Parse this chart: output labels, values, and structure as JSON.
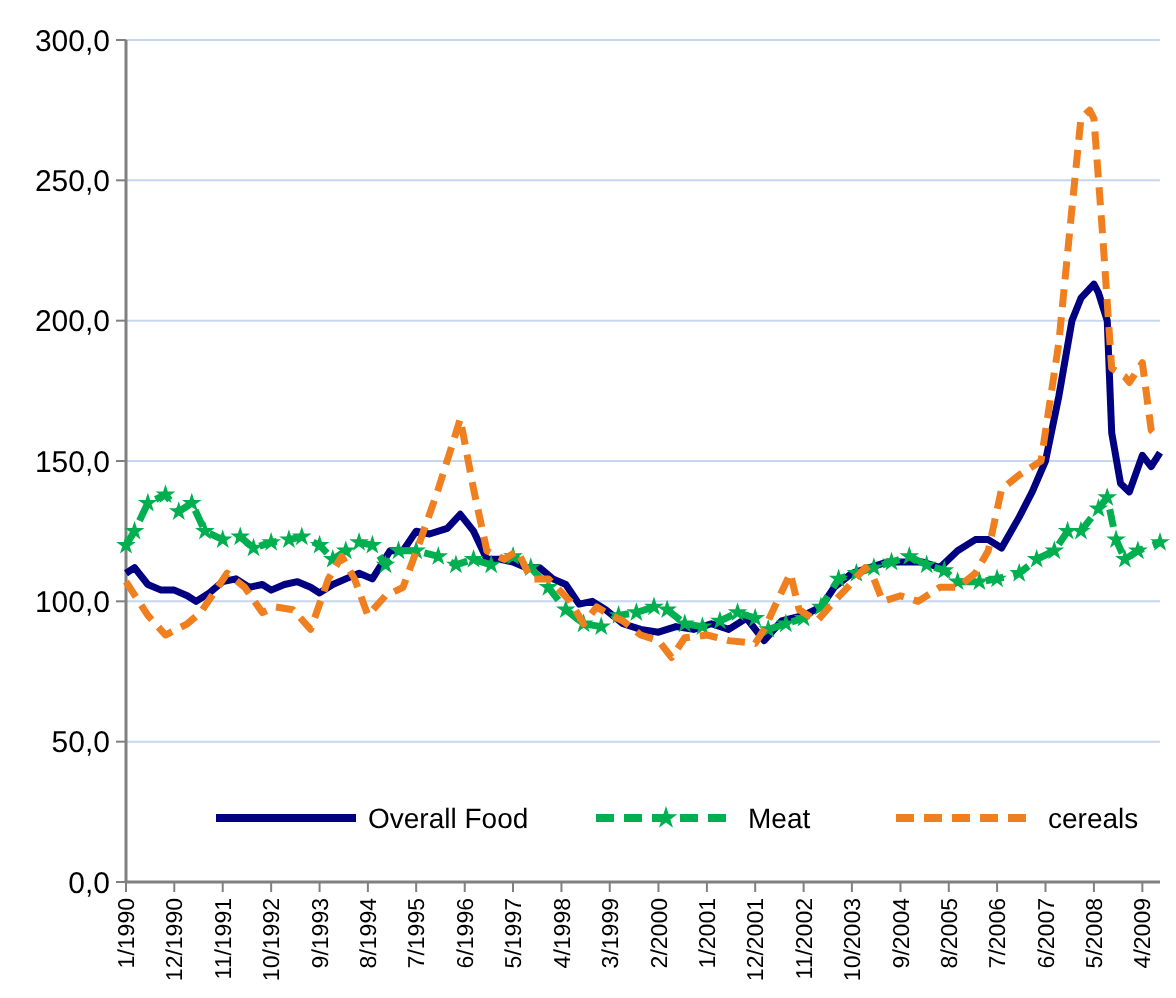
{
  "chart_data": {
    "type": "line",
    "xlim": [
      "1990-01",
      "2009-08"
    ],
    "xticks": [
      {
        "value": "1990-01",
        "label": "1/1990"
      },
      {
        "value": "1990-12",
        "label": "12/1990"
      },
      {
        "value": "1991-11",
        "label": "11/1991"
      },
      {
        "value": "1992-10",
        "label": "10/1992"
      },
      {
        "value": "1993-09",
        "label": "9/1993"
      },
      {
        "value": "1994-08",
        "label": "8/1994"
      },
      {
        "value": "1995-07",
        "label": "7/1995"
      },
      {
        "value": "1996-06",
        "label": "6/1996"
      },
      {
        "value": "1997-05",
        "label": "5/1997"
      },
      {
        "value": "1998-04",
        "label": "4/1998"
      },
      {
        "value": "1999-03",
        "label": "3/1999"
      },
      {
        "value": "2000-02",
        "label": "2/2000"
      },
      {
        "value": "2001-01",
        "label": "1/2001"
      },
      {
        "value": "2001-12",
        "label": "12/2001"
      },
      {
        "value": "2002-11",
        "label": "11/2002"
      },
      {
        "value": "2003-10",
        "label": "10/2003"
      },
      {
        "value": "2004-09",
        "label": "9/2004"
      },
      {
        "value": "2005-08",
        "label": "8/2005"
      },
      {
        "value": "2006-07",
        "label": "7/2006"
      },
      {
        "value": "2007-06",
        "label": "6/2007"
      },
      {
        "value": "2008-05",
        "label": "5/2008"
      },
      {
        "value": "2009-04",
        "label": "4/2009"
      }
    ],
    "ylim": [
      0,
      300
    ],
    "yticks": [
      {
        "value": 0,
        "label": "0,0"
      },
      {
        "value": 50,
        "label": "50,0"
      },
      {
        "value": 100,
        "label": "100,0"
      },
      {
        "value": 150,
        "label": "150,0"
      },
      {
        "value": 200,
        "label": "200,0"
      },
      {
        "value": 250,
        "label": "250,0"
      },
      {
        "value": 300,
        "label": "300,0"
      }
    ],
    "grid": "y",
    "legend": "bottom",
    "series": [
      {
        "name": "Overall Food",
        "color": "#000080",
        "line_style": "solid",
        "marker": "none",
        "x": [
          "1990-01",
          "1990-03",
          "1990-06",
          "1990-09",
          "1990-12",
          "1991-03",
          "1991-05",
          "1991-08",
          "1991-11",
          "1992-02",
          "1992-05",
          "1992-08",
          "1992-10",
          "1993-01",
          "1993-04",
          "1993-07",
          "1993-09",
          "1993-12",
          "1994-03",
          "1994-06",
          "1994-09",
          "1995-01",
          "1995-04",
          "1995-07",
          "1995-10",
          "1996-02",
          "1996-05",
          "1996-08",
          "1996-11",
          "1997-02",
          "1997-05",
          "1997-08",
          "1997-11",
          "1998-02",
          "1998-05",
          "1998-08",
          "1998-11",
          "1999-02",
          "1999-06",
          "1999-10",
          "2000-02",
          "2000-06",
          "2000-10",
          "2001-02",
          "2001-06",
          "2001-10",
          "2002-02",
          "2002-06",
          "2002-11",
          "2003-03",
          "2003-06",
          "2003-10",
          "2004-02",
          "2004-06",
          "2004-10",
          "2005-02",
          "2005-06",
          "2005-10",
          "2006-02",
          "2006-05",
          "2006-08",
          "2006-12",
          "2007-03",
          "2007-06",
          "2007-09",
          "2007-12",
          "2008-02",
          "2008-05",
          "2008-06",
          "2008-08",
          "2008-09",
          "2008-11",
          "2009-01",
          "2009-04",
          "2009-06",
          "2009-08"
        ],
        "values": [
          110,
          112,
          106,
          104,
          104,
          102,
          100,
          103,
          107,
          108,
          105,
          106,
          104,
          106,
          107,
          105,
          103,
          106,
          108,
          110,
          108,
          118,
          118,
          125,
          124,
          126,
          131,
          125,
          115,
          115,
          114,
          112,
          112,
          108,
          106,
          99,
          100,
          97,
          92,
          90,
          89,
          91,
          90,
          92,
          90,
          94,
          86,
          93,
          95,
          98,
          105,
          110,
          112,
          114,
          114,
          114,
          112,
          118,
          122,
          122,
          119,
          130,
          139,
          150,
          173,
          200,
          208,
          213,
          210,
          200,
          160,
          142,
          139,
          152,
          148,
          153
        ]
      },
      {
        "name": "Meat",
        "color": "#00b050",
        "line_style": "dashed",
        "marker": "star",
        "x": [
          "1990-01",
          "1990-03",
          "1990-06",
          "1990-10",
          "1991-01",
          "1991-04",
          "1991-07",
          "1991-11",
          "1992-03",
          "1992-06",
          "1992-10",
          "1993-02",
          "1993-05",
          "1993-09",
          "1993-12",
          "1994-03",
          "1994-06",
          "1994-09",
          "1994-12",
          "1995-03",
          "1995-07",
          "1995-12",
          "1996-04",
          "1996-08",
          "1996-12",
          "1997-05",
          "1997-09",
          "1998-01",
          "1998-05",
          "1998-09",
          "1999-01",
          "1999-05",
          "1999-09",
          "2000-01",
          "2000-04",
          "2000-08",
          "2000-12",
          "2001-04",
          "2001-08",
          "2001-12",
          "2002-03",
          "2002-07",
          "2002-11",
          "2003-03",
          "2003-07",
          "2003-11",
          "2004-03",
          "2004-07",
          "2004-11",
          "2005-03",
          "2005-07",
          "2005-10",
          "2006-03",
          "2006-07",
          "2006-12",
          "2007-04",
          "2007-08",
          "2007-11",
          "2008-02",
          "2008-06",
          "2008-08",
          "2008-10",
          "2008-12",
          "2009-03",
          "2009-08"
        ],
        "values": [
          120,
          125,
          135,
          138,
          132,
          135,
          125,
          122,
          123,
          119,
          121,
          122,
          123,
          120,
          115,
          118,
          121,
          120,
          113,
          118,
          118,
          116,
          113,
          115,
          113,
          116,
          112,
          105,
          97,
          92,
          91,
          95,
          96,
          98,
          97,
          92,
          91,
          93,
          96,
          94,
          90,
          92,
          94,
          98,
          108,
          110,
          112,
          114,
          116,
          113,
          111,
          107,
          107,
          108,
          110,
          115,
          118,
          125,
          125,
          133,
          137,
          122,
          115,
          118,
          121
        ]
      },
      {
        "name": "cereals",
        "color": "#f07f1f",
        "line_style": "dashed",
        "marker": "none",
        "x": [
          "1990-01",
          "1990-06",
          "1990-10",
          "1991-03",
          "1991-06",
          "1991-12",
          "1992-04",
          "1992-08",
          "1992-11",
          "1993-03",
          "1993-07",
          "1993-11",
          "1994-02",
          "1994-05",
          "1994-08",
          "1994-12",
          "1995-04",
          "1995-08",
          "1995-12",
          "1996-04",
          "1996-05",
          "1996-08",
          "1996-11",
          "1997-03",
          "1997-06",
          "1997-09",
          "1998-01",
          "1998-06",
          "1998-09",
          "1998-12",
          "1999-02",
          "1999-06",
          "1999-10",
          "2000-02",
          "2000-05",
          "2000-08",
          "2001-01",
          "2001-06",
          "2001-12",
          "2002-02",
          "2002-08",
          "2002-10",
          "2003-02",
          "2003-06",
          "2003-09",
          "2004-01",
          "2004-03",
          "2004-05",
          "2004-09",
          "2005-01",
          "2005-06",
          "2005-10",
          "2006-02",
          "2006-05",
          "2006-08",
          "2006-12",
          "2007-05",
          "2007-09",
          "2007-12",
          "2008-02",
          "2008-04",
          "2008-05",
          "2008-07",
          "2008-09",
          "2008-12",
          "2009-01",
          "2009-04",
          "2009-06",
          "2009-08"
        ],
        "values": [
          107,
          95,
          88,
          92,
          96,
          110,
          105,
          96,
          98,
          97,
          90,
          108,
          116,
          108,
          95,
          102,
          105,
          122,
          140,
          160,
          165,
          140,
          118,
          115,
          118,
          108,
          108,
          100,
          92,
          98,
          96,
          93,
          88,
          86,
          80,
          87,
          88,
          86,
          85,
          90,
          110,
          97,
          93,
          100,
          105,
          112,
          108,
          100,
          102,
          100,
          105,
          105,
          110,
          118,
          140,
          145,
          150,
          192,
          240,
          272,
          275,
          272,
          230,
          183,
          180,
          178,
          185,
          161,
          158
        ]
      }
    ]
  }
}
